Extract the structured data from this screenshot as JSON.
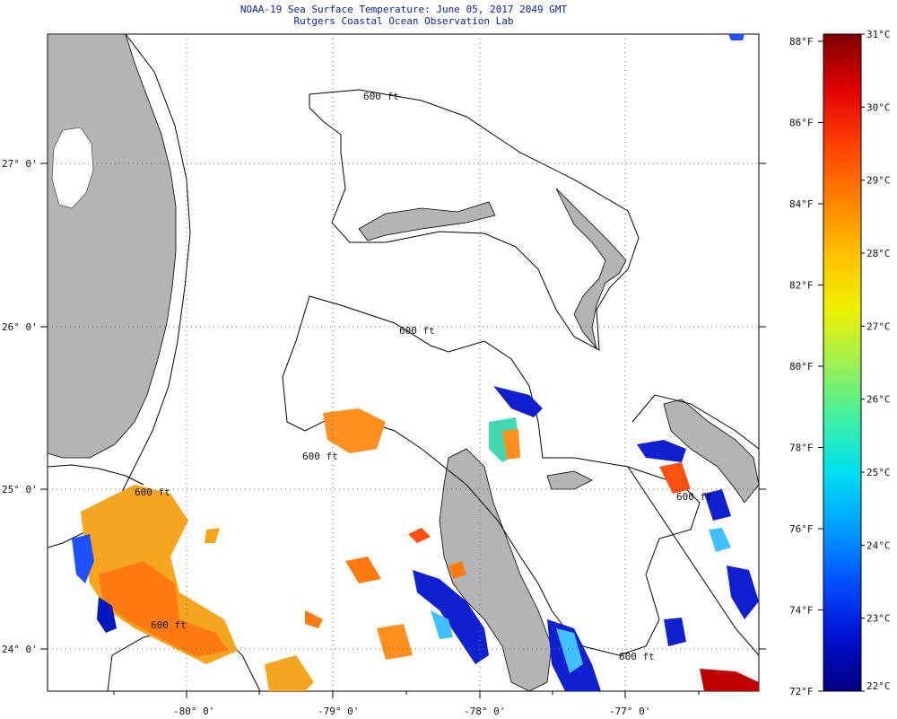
{
  "header": {
    "title": "NOAA-19 Sea Surface Temperature:  June 05, 2017 2049 GMT",
    "subtitle": "Rutgers Coastal Ocean Observation Lab"
  },
  "map": {
    "lon_ticks": [
      "-80° 0'",
      "-79° 0'",
      "-78° 0'",
      "-77° 0'"
    ],
    "lat_ticks": [
      "27° 0'",
      "26° 0'",
      "25° 0'",
      "24° 0'"
    ],
    "contour_label": "600 ft",
    "land_color": "#b4b4b4"
  },
  "colorbar": {
    "f_labels": [
      "88°F",
      "86°F",
      "84°F",
      "82°F",
      "80°F",
      "78°F",
      "76°F",
      "74°F",
      "72°F"
    ],
    "c_labels": [
      "31°C",
      "30°C",
      "29°C",
      "28°C",
      "27°C",
      "26°C",
      "25°C",
      "24°C",
      "23°C",
      "22°C"
    ],
    "gradient": [
      "#000080",
      "#0010d0",
      "#0050ff",
      "#00a0ff",
      "#00e0f0",
      "#40f0a0",
      "#a0f050",
      "#f0f000",
      "#ffc000",
      "#ff8000",
      "#ff4000",
      "#e00000",
      "#800000"
    ]
  }
}
